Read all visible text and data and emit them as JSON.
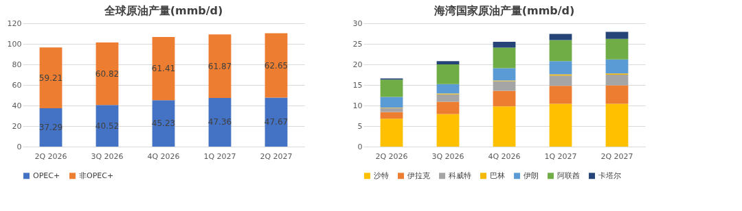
{
  "chart_data": [
    {
      "type": "bar",
      "title": "全球原油产量(mmb/d)",
      "stacked": true,
      "data_labels": true,
      "grid": "y",
      "legend": "bottom",
      "ylim": [
        0,
        120
      ],
      "yticks": [
        0,
        20,
        40,
        60,
        80,
        100,
        120
      ],
      "categories": [
        "2Q 2026",
        "3Q 2026",
        "4Q 2026",
        "1Q 2027",
        "2Q 2027"
      ],
      "series": [
        {
          "name": "OPEC+",
          "color": "#4472c4",
          "values": [
            37.29,
            40.52,
            45.23,
            47.36,
            47.67
          ]
        },
        {
          "name": "非OPEC+",
          "color": "#ed7d31",
          "values": [
            59.21,
            60.82,
            61.41,
            61.87,
            62.65
          ]
        }
      ]
    },
    {
      "type": "bar",
      "title": "海湾国家原油产量(mmb/d)",
      "stacked": true,
      "grid": "y",
      "legend": "bottom",
      "ylim": [
        0,
        30
      ],
      "yticks": [
        0,
        5,
        10,
        15,
        20,
        25,
        30
      ],
      "categories": [
        "2Q 2026",
        "3Q 2026",
        "4Q 2026",
        "1Q 2027",
        "2Q 2027"
      ],
      "series": [
        {
          "name": "沙特",
          "color": "#ffc000",
          "values": [
            6.8,
            7.9,
            9.8,
            10.4,
            10.4
          ]
        },
        {
          "name": "伊拉克",
          "color": "#ed7d31",
          "values": [
            1.6,
            3.0,
            3.8,
            4.4,
            4.5
          ]
        },
        {
          "name": "科威特",
          "color": "#a5a5a5",
          "values": [
            1.0,
            1.8,
            2.3,
            2.5,
            2.6
          ]
        },
        {
          "name": "巴林",
          "color": "#f5b800",
          "values": [
            0.1,
            0.2,
            0.2,
            0.3,
            0.3
          ]
        },
        {
          "name": "伊朗",
          "color": "#5b9bd5",
          "values": [
            2.6,
            2.3,
            3.0,
            3.2,
            3.4
          ]
        },
        {
          "name": "阿联酋",
          "color": "#70ad47",
          "values": [
            4.2,
            4.8,
            5.0,
            5.1,
            5.0
          ]
        },
        {
          "name": "卡塔尔",
          "color": "#264478",
          "values": [
            0.3,
            0.8,
            1.4,
            1.5,
            1.7
          ]
        }
      ]
    }
  ]
}
